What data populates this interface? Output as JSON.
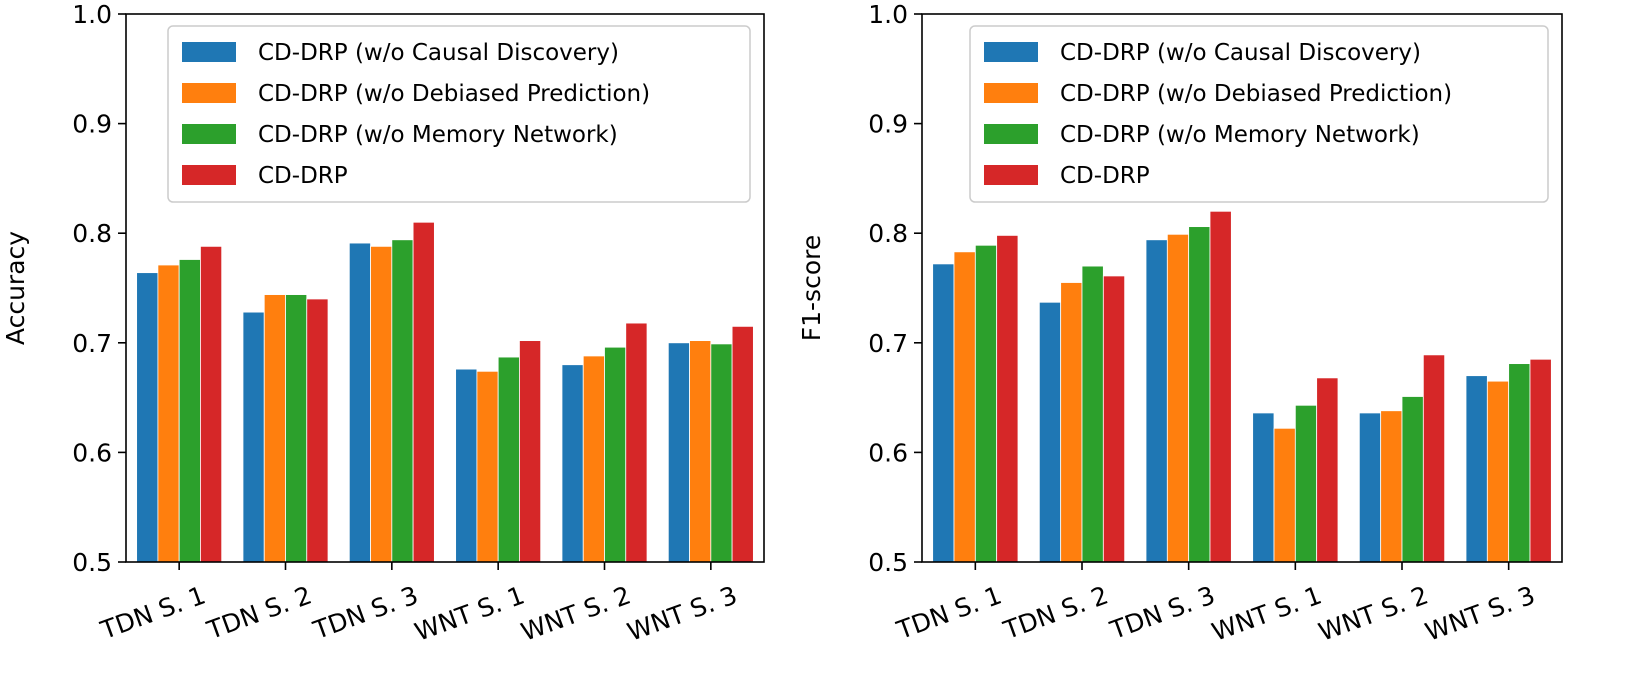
{
  "chart_data": [
    {
      "type": "bar",
      "ylabel": "Accuracy",
      "xlabel": "",
      "title": "",
      "ylim": [
        0.5,
        1.0
      ],
      "yticks": [
        "0.5",
        "0.6",
        "0.7",
        "0.8",
        "0.9",
        "1.0"
      ],
      "categories": [
        "TDN S. 1",
        "TDN S. 2",
        "TDN S. 3",
        "WNT S. 1",
        "WNT S. 2",
        "WNT S. 3"
      ],
      "legend_position": "top-right",
      "series": [
        {
          "name": "CD-DRP (w/o Causal Discovery)",
          "color": "#1f77b4",
          "values": [
            0.764,
            0.728,
            0.791,
            0.676,
            0.68,
            0.7
          ]
        },
        {
          "name": "CD-DRP (w/o Debiased Prediction)",
          "color": "#ff7f0e",
          "values": [
            0.771,
            0.744,
            0.788,
            0.674,
            0.688,
            0.702
          ]
        },
        {
          "name": "CD-DRP (w/o Memory Network)",
          "color": "#2ca02c",
          "values": [
            0.776,
            0.744,
            0.794,
            0.687,
            0.696,
            0.699
          ]
        },
        {
          "name": "CD-DRP",
          "color": "#d62728",
          "values": [
            0.788,
            0.74,
            0.81,
            0.702,
            0.718,
            0.715
          ]
        }
      ]
    },
    {
      "type": "bar",
      "ylabel": "F1-score",
      "xlabel": "",
      "title": "",
      "ylim": [
        0.5,
        1.0
      ],
      "yticks": [
        "0.5",
        "0.6",
        "0.7",
        "0.8",
        "0.9",
        "1.0"
      ],
      "categories": [
        "TDN S. 1",
        "TDN S. 2",
        "TDN S. 3",
        "WNT S. 1",
        "WNT S. 2",
        "WNT S. 3"
      ],
      "legend_position": "top-right",
      "series": [
        {
          "name": "CD-DRP (w/o Causal Discovery)",
          "color": "#1f77b4",
          "values": [
            0.772,
            0.737,
            0.794,
            0.636,
            0.636,
            0.67
          ]
        },
        {
          "name": "CD-DRP (w/o Debiased Prediction)",
          "color": "#ff7f0e",
          "values": [
            0.783,
            0.755,
            0.799,
            0.622,
            0.638,
            0.665
          ]
        },
        {
          "name": "CD-DRP (w/o Memory Network)",
          "color": "#2ca02c",
          "values": [
            0.789,
            0.77,
            0.806,
            0.643,
            0.651,
            0.681
          ]
        },
        {
          "name": "CD-DRP",
          "color": "#d62728",
          "values": [
            0.798,
            0.761,
            0.82,
            0.668,
            0.689,
            0.685
          ]
        }
      ]
    }
  ]
}
